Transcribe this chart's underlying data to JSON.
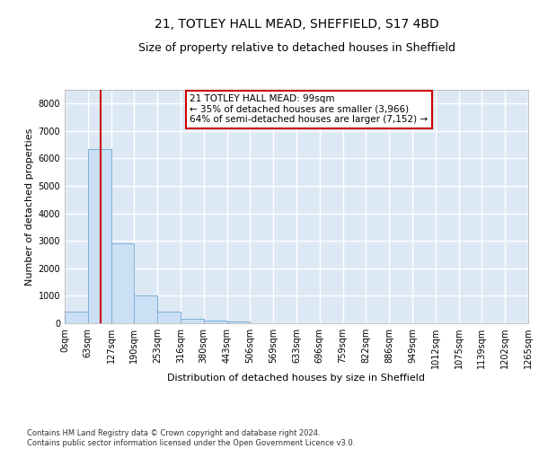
{
  "title_line1": "21, TOTLEY HALL MEAD, SHEFFIELD, S17 4BD",
  "title_line2": "Size of property relative to detached houses in Sheffield",
  "xlabel": "Distribution of detached houses by size in Sheffield",
  "ylabel": "Number of detached properties",
  "footer_line1": "Contains HM Land Registry data © Crown copyright and database right 2024.",
  "footer_line2": "Contains public sector information licensed under the Open Government Licence v3.0.",
  "bin_labels": [
    "0sqm",
    "63sqm",
    "127sqm",
    "190sqm",
    "253sqm",
    "316sqm",
    "380sqm",
    "443sqm",
    "506sqm",
    "569sqm",
    "633sqm",
    "696sqm",
    "759sqm",
    "822sqm",
    "886sqm",
    "949sqm",
    "1012sqm",
    "1075sqm",
    "1139sqm",
    "1202sqm",
    "1265sqm"
  ],
  "bar_values": [
    430,
    6350,
    2900,
    1000,
    430,
    160,
    100,
    65,
    0,
    0,
    0,
    0,
    0,
    0,
    0,
    0,
    0,
    0,
    0,
    0
  ],
  "bar_color": "#cce0f5",
  "bar_edge_color": "#7ab0d4",
  "ylim": [
    0,
    8500
  ],
  "yticks": [
    0,
    1000,
    2000,
    3000,
    4000,
    5000,
    6000,
    7000,
    8000
  ],
  "property_line_x": 1.56,
  "annotation_text_line1": "21 TOTLEY HALL MEAD: 99sqm",
  "annotation_text_line2": "← 35% of detached houses are smaller (3,966)",
  "annotation_text_line3": "64% of semi-detached houses are larger (7,152) →",
  "annotation_box_color": "#ffffff",
  "annotation_box_edge_color": "#cc0000",
  "vline_color": "#cc0000",
  "background_color": "#dde8f5",
  "grid_color": "#ffffff",
  "title1_fontsize": 10,
  "title2_fontsize": 9,
  "ylabel_fontsize": 8,
  "xlabel_fontsize": 8,
  "tick_fontsize": 7,
  "footer_fontsize": 6,
  "annot_fontsize": 7.5
}
